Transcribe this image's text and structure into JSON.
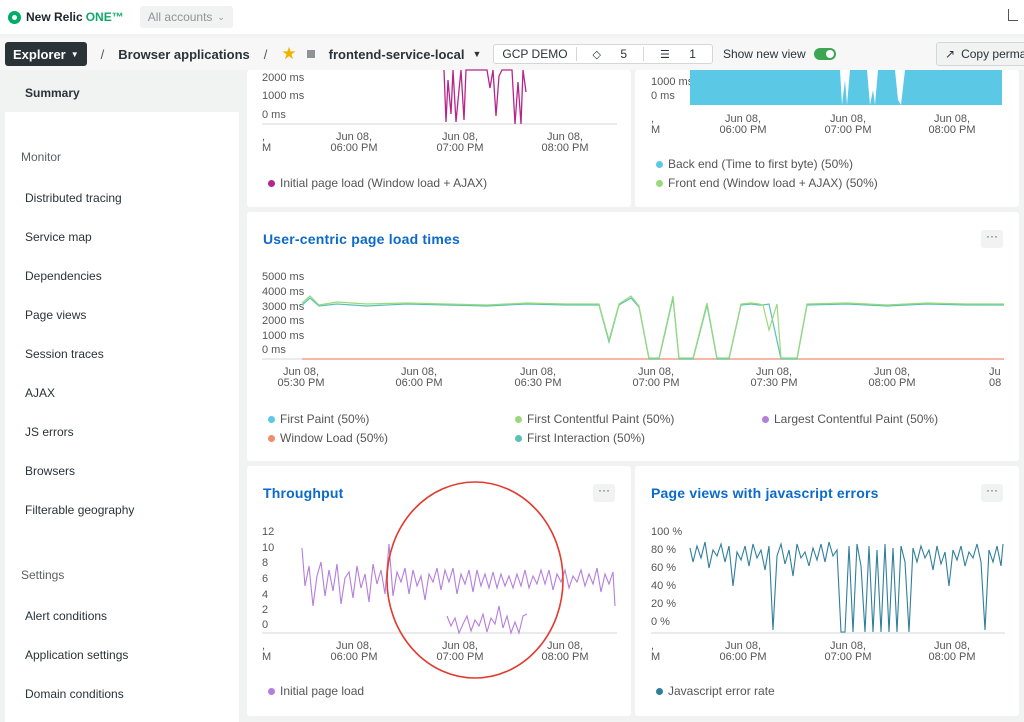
{
  "topbar": {
    "logo_text": "New Relic",
    "logo_one": "ONE™",
    "accounts_label": "All accounts",
    "accounts_icon": "chevron-down-icon"
  },
  "navbar": {
    "explorer_label": "Explorer",
    "sep": "/",
    "crumb_browser": "Browser applications",
    "app_name": "frontend-service-local",
    "tag_env": "GCP DEMO",
    "tag_count": "5",
    "entity_count": "1",
    "show_new_view": "Show new view",
    "copy_label": "Copy perma"
  },
  "sidebar": {
    "summary": "Summary",
    "monitor_head": "Monitor",
    "monitor_items": [
      "Distributed tracing",
      "Service map",
      "Dependencies",
      "Page views",
      "Session traces",
      "AJAX",
      "JS errors",
      "Browsers",
      "Filterable geography"
    ],
    "settings_head": "Settings",
    "settings_items": [
      "Alert conditions",
      "Application settings",
      "Domain conditions"
    ]
  },
  "cards": {
    "top_left": {
      "y_ticks": [
        "2000 ms",
        "1000 ms",
        "0 ms"
      ],
      "x_ticks": [
        ",\nM",
        "Jun 08,\n06:00 PM",
        "Jun 08,\n07:00 PM",
        "Jun 08,\n08:00 PM"
      ],
      "legend": "Initial page load (Window load + AJAX)",
      "color": "#b5268a"
    },
    "top_right": {
      "y_ticks": [
        "1000 ms",
        "0 ms"
      ],
      "x_ticks": [
        ",\nM",
        "Jun 08,\n06:00 PM",
        "Jun 08,\n07:00 PM",
        "Jun 08,\n08:00 PM"
      ],
      "legend_1": "Back end (Time to first byte) (50%)",
      "legend_2": "Front end (Window load + AJAX) (50%)",
      "color_1": "#5bc8e6",
      "color_2": "#9ad97a"
    },
    "user_centric": {
      "title": "User-centric page load times",
      "y_ticks": [
        "5000 ms",
        "4000 ms",
        "3000 ms",
        "2000 ms",
        "1000 ms",
        "0 ms"
      ],
      "x_ticks": [
        "Jun 08,\n05:30 PM",
        "Jun 08,\n06:00 PM",
        "Jun 08,\n06:30 PM",
        "Jun 08,\n07:00 PM",
        "Jun 08,\n07:30 PM",
        "Jun 08,\n08:00 PM",
        "Ju\n08"
      ],
      "legend": [
        {
          "label": "First Paint (50%)",
          "color": "#5bc8e6"
        },
        {
          "label": "First Contentful Paint (50%)",
          "color": "#9ad97a"
        },
        {
          "label": "Largest Contentful Paint (50%)",
          "color": "#b57edc"
        },
        {
          "label": "Window Load (50%)",
          "color": "#f08c6e"
        },
        {
          "label": "First Interaction (50%)",
          "color": "#56c2b6"
        }
      ]
    },
    "throughput": {
      "title": "Throughput",
      "y_ticks": [
        "12",
        "10",
        "8",
        "6",
        "4",
        "2",
        "0"
      ],
      "x_ticks": [
        ",\nM",
        "Jun 08,\n06:00 PM",
        "Jun 08,\n07:00 PM",
        "Jun 08,\n08:00 PM"
      ],
      "legend": "Initial page load",
      "color": "#b57edc",
      "highlight_color": "#e03c2f"
    },
    "js_errors": {
      "title": "Page views with javascript errors",
      "y_ticks": [
        "100 %",
        "80 %",
        "60 %",
        "40 %",
        "20 %",
        "0 %"
      ],
      "x_ticks": [
        ",\nM",
        "Jun 08,\n06:00 PM",
        "Jun 08,\n07:00 PM",
        "Jun 08,\n08:00 PM"
      ],
      "legend": "Javascript error rate",
      "color": "#2f7f9a"
    }
  }
}
